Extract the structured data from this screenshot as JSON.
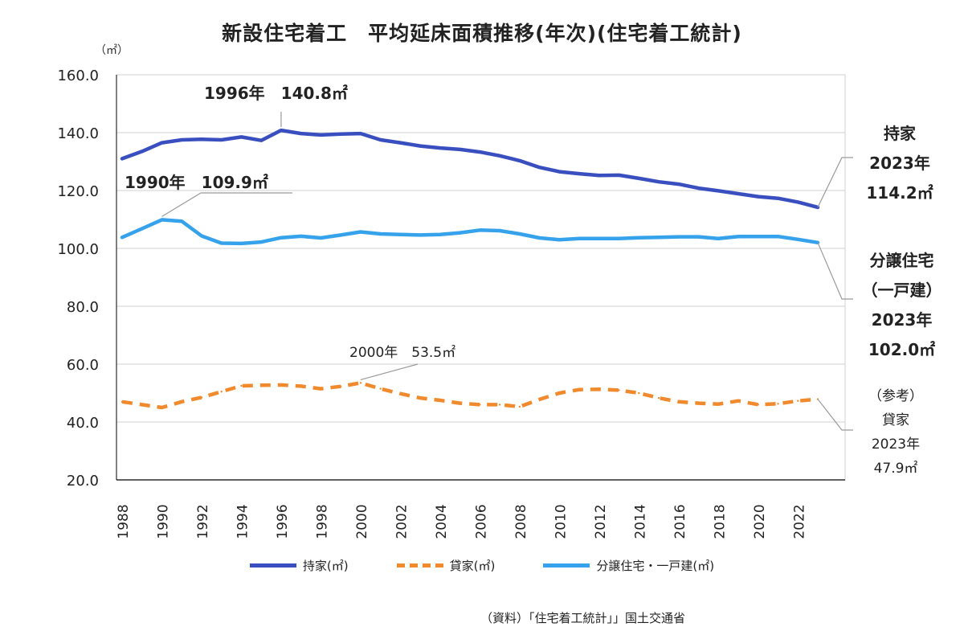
{
  "title": "新設住宅着工　平均延床面積推移(年次)(住宅着工統計)",
  "unit_label": "（㎡）",
  "source": "（資料）「住宅着工統計」」国土交通省",
  "annotations": {
    "owned_peak": "1996年　140.8㎡",
    "sales_peak": "1990年　109.9㎡",
    "rental_peak": "2000年　53.5㎡"
  },
  "side_labels": {
    "owned": [
      "持家",
      "2023年",
      "114.2㎡"
    ],
    "sales": [
      "分譲住宅",
      "（一戸建）",
      "2023年",
      "102.0㎡"
    ],
    "rental": [
      "（参考）",
      "貸家",
      "2023年",
      "47.9㎡"
    ]
  },
  "legend": {
    "owned": "持家(㎡)",
    "rental": "貸家(㎡)",
    "sales": "分譲住宅・一戸建(㎡)"
  },
  "colors": {
    "owned": "#3a4fbf",
    "rental": "#f08a2c",
    "sales": "#36a2eb",
    "grid": "#d0d0d0",
    "axis": "#000000"
  },
  "chart_data": {
    "type": "line",
    "title": "新設住宅着工　平均延床面積推移(年次)(住宅着工統計)",
    "ylabel": "（㎡）",
    "xlabel": "",
    "ylim": [
      20,
      160
    ],
    "yticks": [
      "160.0",
      "140.0",
      "120.0",
      "100.0",
      "80.0",
      "60.0",
      "40.0",
      "20.0"
    ],
    "x": [
      1988,
      1989,
      1990,
      1991,
      1992,
      1993,
      1994,
      1995,
      1996,
      1997,
      1998,
      1999,
      2000,
      2001,
      2002,
      2003,
      2004,
      2005,
      2006,
      2007,
      2008,
      2009,
      2010,
      2011,
      2012,
      2013,
      2014,
      2015,
      2016,
      2017,
      2018,
      2019,
      2020,
      2021,
      2022,
      2023
    ],
    "xticks": [
      "1988",
      "1990",
      "1992",
      "1994",
      "1996",
      "1998",
      "2000",
      "2002",
      "2004",
      "2006",
      "2008",
      "2010",
      "2012",
      "2014",
      "2016",
      "2018",
      "2020",
      "2022"
    ],
    "grid": true,
    "legend_position": "bottom",
    "series": [
      {
        "name": "持家(㎡)",
        "key": "owned",
        "style": "solid",
        "values": [
          131.0,
          133.5,
          136.5,
          137.5,
          137.7,
          137.5,
          138.5,
          137.3,
          140.8,
          139.7,
          139.2,
          139.5,
          139.7,
          137.5,
          136.5,
          135.4,
          134.7,
          134.2,
          133.3,
          132.0,
          130.3,
          128.0,
          126.5,
          125.8,
          125.2,
          125.3,
          124.2,
          123.0,
          122.2,
          120.8,
          119.9,
          118.9,
          117.9,
          117.3,
          116.0,
          114.2
        ]
      },
      {
        "name": "貸家(㎡)",
        "key": "rental",
        "style": "dashed",
        "values": [
          47.0,
          46.0,
          45.0,
          47.0,
          48.5,
          50.5,
          52.5,
          52.7,
          52.8,
          52.4,
          51.5,
          52.3,
          53.5,
          51.5,
          49.8,
          48.3,
          47.5,
          46.5,
          46.0,
          46.0,
          45.3,
          47.8,
          50.0,
          51.2,
          51.3,
          51.0,
          50.0,
          48.3,
          47.0,
          46.5,
          46.2,
          47.3,
          46.0,
          46.3,
          47.3,
          47.9
        ]
      },
      {
        "name": "分譲住宅・一戸建(㎡)",
        "key": "sales",
        "style": "solid",
        "values": [
          103.8,
          106.8,
          109.9,
          109.4,
          104.3,
          101.8,
          101.7,
          102.2,
          103.7,
          104.2,
          103.6,
          104.6,
          105.7,
          105.0,
          104.8,
          104.6,
          104.8,
          105.4,
          106.3,
          106.1,
          105.0,
          103.6,
          103.0,
          103.4,
          103.4,
          103.4,
          103.7,
          103.8,
          104.0,
          104.0,
          103.4,
          104.1,
          104.1,
          104.1,
          103.1,
          102.0
        ]
      }
    ]
  }
}
